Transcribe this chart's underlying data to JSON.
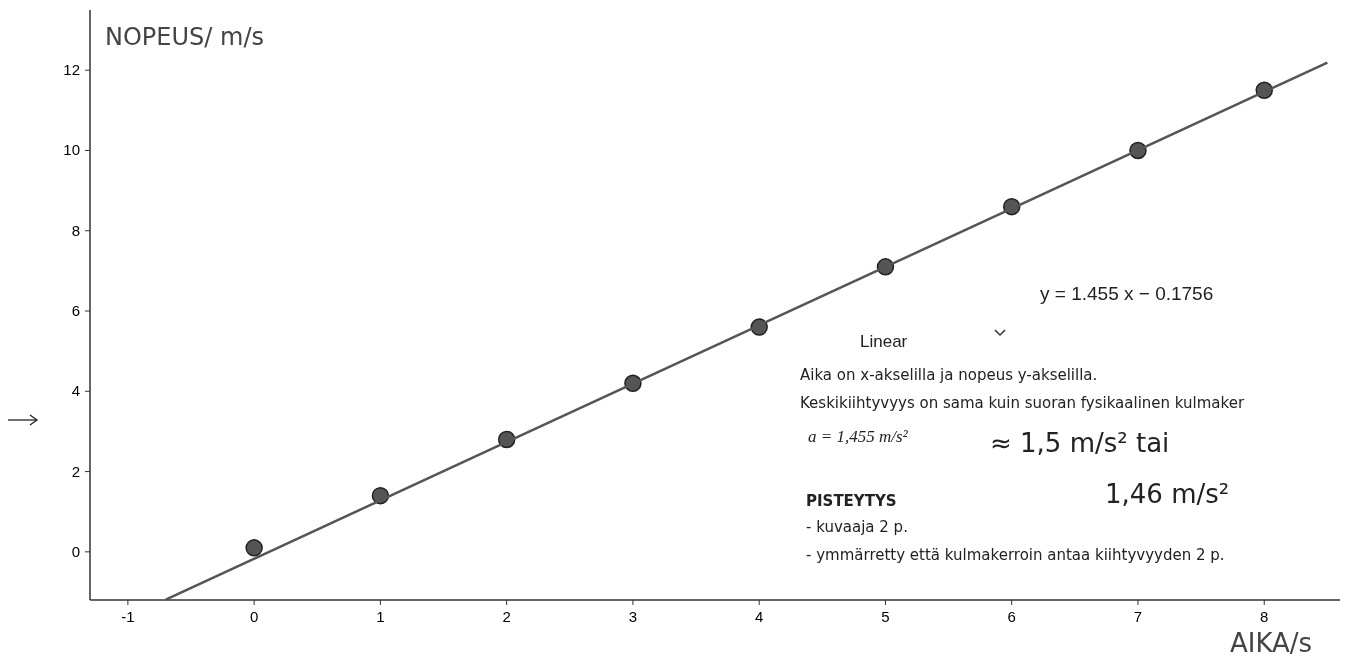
{
  "chart_data": {
    "type": "scatter",
    "xlabel": "AIKA/s",
    "ylabel": "NOPEUS/ m/s",
    "xlim": [
      -1.3,
      8.6
    ],
    "ylim": [
      -1.2,
      13.5
    ],
    "xticks": [
      -1,
      0,
      1,
      2,
      3,
      4,
      5,
      6,
      7,
      8
    ],
    "yticks": [
      0,
      2,
      4,
      6,
      8,
      10,
      12
    ],
    "grid": false,
    "marker": "circle",
    "series": [
      {
        "color": "#555555",
        "x": [
          0,
          1,
          2,
          3,
          4,
          5,
          6,
          7,
          8
        ],
        "values": [
          0.1,
          1.4,
          2.8,
          4.2,
          5.6,
          7.1,
          8.6,
          10.0,
          11.5
        ]
      },
      {
        "type": "line",
        "color": "#555555",
        "x": [
          -0.7,
          8.5
        ],
        "values": [
          -1.19,
          12.19
        ],
        "marker": "none"
      }
    ],
    "annotations": [
      "y = 1.455 x − 0.1756",
      "Linear",
      "Aika on x-akselilla ja nopeus y-akselilla.",
      "Keskikiihtyvyys on sama kuin suoran fysikaalinen kulmaker",
      "a = 1,455 m/s²",
      "≈ 1,5 m/s² tai",
      "PISTEYTYS",
      "- kuvaaja 2 p.",
      "- ymmärretty että kulmakerroin antaa kiihtyvyyden 2 p.",
      "1,46 m/s²"
    ]
  }
}
